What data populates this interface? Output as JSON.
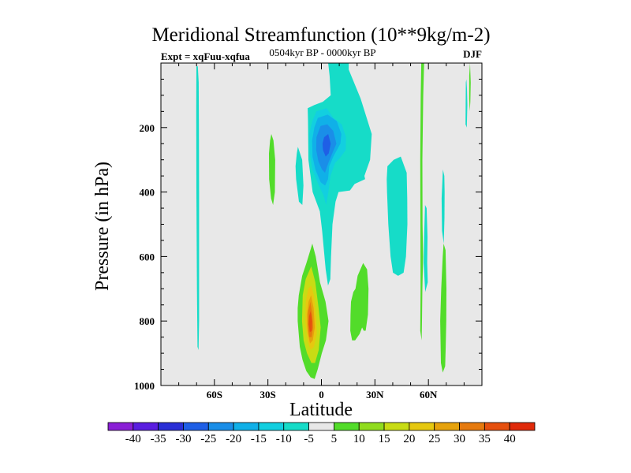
{
  "chart_data": {
    "type": "contour",
    "title": "Meridional Streamfunction (10**9kg/m-2)",
    "left_label": "Expt = xqFuu-xqfua",
    "center_label": "0504kyr BP - 0000kyr BP",
    "right_label": "DJF",
    "xlabel": "Latitude",
    "ylabel": "Pressure (in hPa)",
    "xlim": [
      -90,
      90
    ],
    "ylim": [
      1000,
      0
    ],
    "x_ticks": [
      {
        "value": -60,
        "label": "60S"
      },
      {
        "value": -30,
        "label": "30S"
      },
      {
        "value": 0,
        "label": "0"
      },
      {
        "value": 30,
        "label": "30N"
      },
      {
        "value": 60,
        "label": "60N"
      }
    ],
    "y_ticks": [
      {
        "value": 200,
        "label": "200"
      },
      {
        "value": 400,
        "label": "400"
      },
      {
        "value": 600,
        "label": "600"
      },
      {
        "value": 800,
        "label": "800"
      },
      {
        "value": 1000,
        "label": "1000"
      }
    ],
    "colorbar": {
      "labels": [
        "-40",
        "-35",
        "-30",
        "-25",
        "-20",
        "-15",
        "-10",
        "-5",
        "5",
        "10",
        "15",
        "20",
        "25",
        "30",
        "35",
        "40"
      ],
      "colors": [
        "#8a1fd6",
        "#5a1ee0",
        "#2a2fd6",
        "#1f5fe6",
        "#1a8ee8",
        "#10b0e8",
        "#12cfe0",
        "#16dcc8",
        "#e8e8e8",
        "#52dc2a",
        "#90dc1e",
        "#c8dc14",
        "#e6c810",
        "#e6a20c",
        "#e67a0e",
        "#e6500e",
        "#e02a0a"
      ]
    },
    "regions": [
      {
        "level": -5,
        "points": [
          [
            -69.3,
            10
          ],
          [
            -68.8,
            60
          ],
          [
            -68.7,
            200
          ],
          [
            -68.6,
            400
          ],
          [
            -68.6,
            600
          ],
          [
            -68.6,
            800
          ],
          [
            -68.9,
            890
          ],
          [
            -69.5,
            880
          ],
          [
            -69.8,
            700
          ],
          [
            -70.1,
            400
          ],
          [
            -70.2,
            150
          ],
          [
            -70.1,
            10
          ]
        ]
      },
      {
        "level": -5,
        "points": [
          [
            3.8,
            0
          ],
          [
            15.3,
            0
          ],
          [
            15.3,
            20
          ],
          [
            22.0,
            110
          ],
          [
            28.2,
            220
          ],
          [
            27.3,
            300
          ],
          [
            24.1,
            350
          ],
          [
            24.5,
            360
          ],
          [
            18.6,
            375
          ],
          [
            16.0,
            395
          ],
          [
            9.6,
            400
          ],
          [
            7.9,
            430
          ],
          [
            6.2,
            500
          ],
          [
            5.4,
            600
          ],
          [
            5.0,
            670
          ],
          [
            3.7,
            690
          ],
          [
            2.4,
            640
          ],
          [
            0.4,
            520
          ],
          [
            -0.9,
            460
          ],
          [
            -4.9,
            400
          ],
          [
            -7.3,
            300
          ],
          [
            -7.5,
            180
          ],
          [
            -7.7,
            140
          ],
          [
            -4.0,
            130
          ],
          [
            0.8,
            120
          ],
          [
            5.2,
            100
          ],
          [
            4.6,
            40
          ]
        ]
      },
      {
        "level": -5,
        "points": [
          [
            37.0,
            320
          ],
          [
            40.5,
            300
          ],
          [
            44.5,
            290
          ],
          [
            47.8,
            340
          ],
          [
            48.1,
            420
          ],
          [
            48.2,
            500
          ],
          [
            47.4,
            600
          ],
          [
            46.1,
            650
          ],
          [
            43.0,
            660
          ],
          [
            40.1,
            650
          ],
          [
            38.8,
            600
          ],
          [
            37.5,
            500
          ],
          [
            36.8,
            400
          ],
          [
            36.6,
            360
          ]
        ]
      },
      {
        "level": -5,
        "points": [
          [
            58.1,
            440
          ],
          [
            59.0,
            450
          ],
          [
            59.5,
            540
          ],
          [
            59.3,
            620
          ],
          [
            59.6,
            680
          ],
          [
            58.2,
            710
          ],
          [
            57.3,
            620
          ],
          [
            57.6,
            540
          ]
        ]
      },
      {
        "level": -5,
        "points": [
          [
            -13.2,
            260
          ],
          [
            -10.8,
            300
          ],
          [
            -10.1,
            380
          ],
          [
            -10.7,
            440
          ],
          [
            -12.6,
            430
          ],
          [
            -14.2,
            360
          ],
          [
            -14.5,
            320
          ],
          [
            -13.8,
            280
          ]
        ]
      },
      {
        "level": -5,
        "points": [
          [
            81.0,
            60
          ],
          [
            80.9,
            120
          ],
          [
            80.8,
            190
          ],
          [
            81.5,
            200
          ],
          [
            81.8,
            130
          ],
          [
            81.6,
            80
          ],
          [
            81.3,
            50
          ]
        ]
      },
      {
        "level": -5,
        "points": [
          [
            68.1,
            330
          ],
          [
            68.9,
            350
          ],
          [
            69.1,
            400
          ],
          [
            69.0,
            480
          ],
          [
            68.6,
            560
          ],
          [
            67.6,
            520
          ],
          [
            67.4,
            420
          ]
        ]
      },
      {
        "level": -10,
        "points": [
          [
            -2.8,
            150
          ],
          [
            2.9,
            140
          ],
          [
            6.7,
            170
          ],
          [
            11.4,
            190
          ],
          [
            13.8,
            230
          ],
          [
            13.6,
            270
          ],
          [
            10.2,
            295
          ],
          [
            7.6,
            310
          ],
          [
            5.1,
            350
          ],
          [
            3.9,
            400
          ],
          [
            2.6,
            440
          ],
          [
            1.2,
            410
          ],
          [
            -2.2,
            370
          ],
          [
            -5.1,
            330
          ],
          [
            -6.4,
            280
          ],
          [
            -6.8,
            220
          ],
          [
            -5.1,
            180
          ]
        ]
      },
      {
        "level": -15,
        "points": [
          [
            -2.0,
            170
          ],
          [
            3.5,
            160
          ],
          [
            8.6,
            180
          ],
          [
            11.2,
            220
          ],
          [
            10.6,
            250
          ],
          [
            6.7,
            290
          ],
          [
            4.4,
            320
          ],
          [
            3.7,
            360
          ],
          [
            2.1,
            380
          ],
          [
            -0.4,
            370
          ],
          [
            -3.4,
            330
          ],
          [
            -5.0,
            290
          ],
          [
            -5.2,
            240
          ],
          [
            -4.0,
            200
          ]
        ]
      },
      {
        "level": -20,
        "points": [
          [
            -0.5,
            195
          ],
          [
            3.3,
            190
          ],
          [
            6.6,
            210
          ],
          [
            8.4,
            250
          ],
          [
            5.7,
            285
          ],
          [
            3.9,
            310
          ],
          [
            2.0,
            340
          ],
          [
            0.3,
            330
          ],
          [
            -1.7,
            305
          ],
          [
            -2.9,
            270
          ],
          [
            -2.8,
            230
          ]
        ]
      },
      {
        "level": -25,
        "points": [
          [
            1.5,
            230
          ],
          [
            3.8,
            220
          ],
          [
            5.2,
            250
          ],
          [
            4.1,
            280
          ],
          [
            2.4,
            290
          ],
          [
            0.9,
            270
          ],
          [
            0.6,
            250
          ]
        ]
      },
      {
        "level": 5,
        "points": [
          [
            -5.1,
            560
          ],
          [
            -3.2,
            600
          ],
          [
            -0.8,
            680
          ],
          [
            2.3,
            740
          ],
          [
            4.0,
            800
          ],
          [
            2.5,
            860
          ],
          [
            0.2,
            900
          ],
          [
            -2.1,
            950
          ],
          [
            -3.8,
            980
          ],
          [
            -6.0,
            975
          ],
          [
            -8.5,
            955
          ],
          [
            -10.6,
            920
          ],
          [
            -12.1,
            880
          ],
          [
            -13.3,
            800
          ],
          [
            -13.3,
            760
          ],
          [
            -12.7,
            720
          ],
          [
            -10.8,
            660
          ],
          [
            -8.4,
            620
          ]
        ]
      },
      {
        "level": 5,
        "points": [
          [
            56.0,
            0
          ],
          [
            57.6,
            0
          ],
          [
            57.1,
            100
          ],
          [
            56.6,
            300
          ],
          [
            56.7,
            500
          ],
          [
            57.0,
            600
          ],
          [
            56.6,
            700
          ],
          [
            56.4,
            800
          ],
          [
            56.2,
            860
          ],
          [
            55.4,
            830
          ],
          [
            55.6,
            700
          ],
          [
            55.5,
            500
          ],
          [
            55.4,
            300
          ],
          [
            55.7,
            100
          ]
        ]
      },
      {
        "level": 5,
        "points": [
          [
            23.4,
            620
          ],
          [
            25.6,
            640
          ],
          [
            26.4,
            700
          ],
          [
            26.1,
            780
          ],
          [
            24.8,
            830
          ],
          [
            23.7,
            830
          ],
          [
            22.8,
            820
          ],
          [
            21.4,
            840
          ],
          [
            18.9,
            860
          ],
          [
            17.2,
            860
          ],
          [
            16.2,
            830
          ],
          [
            16.3,
            780
          ],
          [
            16.6,
            740
          ],
          [
            17.9,
            710
          ],
          [
            19.1,
            700
          ],
          [
            20.3,
            660
          ]
        ]
      },
      {
        "level": 5,
        "points": [
          [
            68.5,
            560
          ],
          [
            69.6,
            580
          ],
          [
            70.1,
            700
          ],
          [
            70.0,
            800
          ],
          [
            69.7,
            880
          ],
          [
            69.4,
            940
          ],
          [
            68.0,
            960
          ],
          [
            67.0,
            930
          ],
          [
            66.6,
            800
          ],
          [
            67.2,
            700
          ],
          [
            68.0,
            600
          ]
        ]
      },
      {
        "level": 5,
        "points": [
          [
            -28.1,
            220
          ],
          [
            -26.9,
            240
          ],
          [
            -25.9,
            300
          ],
          [
            -26.1,
            400
          ],
          [
            -27.1,
            440
          ],
          [
            -28.2,
            420
          ],
          [
            -29.3,
            360
          ],
          [
            -29.4,
            280
          ],
          [
            -28.8,
            240
          ]
        ]
      },
      {
        "level": 5,
        "points": [
          [
            83.3,
            0
          ],
          [
            83.7,
            60
          ],
          [
            83.5,
            120
          ],
          [
            83.2,
            150
          ],
          [
            82.9,
            110
          ],
          [
            82.9,
            40
          ]
        ]
      },
      {
        "level": 10,
        "points": [
          [
            -5.7,
            630
          ],
          [
            -3.4,
            680
          ],
          [
            -1.6,
            760
          ],
          [
            -0.4,
            820
          ],
          [
            -1.5,
            890
          ],
          [
            -3.6,
            930
          ],
          [
            -5.6,
            930
          ],
          [
            -8.1,
            900
          ],
          [
            -10.0,
            860
          ],
          [
            -10.9,
            800
          ],
          [
            -10.5,
            720
          ],
          [
            -8.8,
            670
          ]
        ]
      },
      {
        "level": 15,
        "points": [
          [
            -5.8,
            690
          ],
          [
            -4.2,
            720
          ],
          [
            -2.9,
            790
          ],
          [
            -2.6,
            840
          ],
          [
            -4.2,
            880
          ],
          [
            -6.0,
            890
          ],
          [
            -7.8,
            860
          ],
          [
            -9.0,
            800
          ],
          [
            -8.8,
            740
          ],
          [
            -7.4,
            700
          ]
        ]
      },
      {
        "level": 20,
        "points": [
          [
            -5.8,
            720
          ],
          [
            -4.4,
            760
          ],
          [
            -3.7,
            820
          ],
          [
            -4.8,
            860
          ],
          [
            -6.4,
            870
          ],
          [
            -7.8,
            830
          ],
          [
            -8.1,
            780
          ],
          [
            -7.2,
            740
          ]
        ]
      },
      {
        "level": 25,
        "points": [
          [
            -6.2,
            740
          ],
          [
            -5.1,
            780
          ],
          [
            -4.7,
            820
          ],
          [
            -5.5,
            850
          ],
          [
            -6.9,
            850
          ],
          [
            -7.6,
            810
          ],
          [
            -7.4,
            770
          ]
        ]
      },
      {
        "level": 30,
        "points": [
          [
            -6.1,
            770
          ],
          [
            -5.2,
            800
          ],
          [
            -5.4,
            830
          ],
          [
            -6.5,
            835
          ],
          [
            -7.1,
            810
          ],
          [
            -6.9,
            785
          ]
        ]
      }
    ]
  }
}
